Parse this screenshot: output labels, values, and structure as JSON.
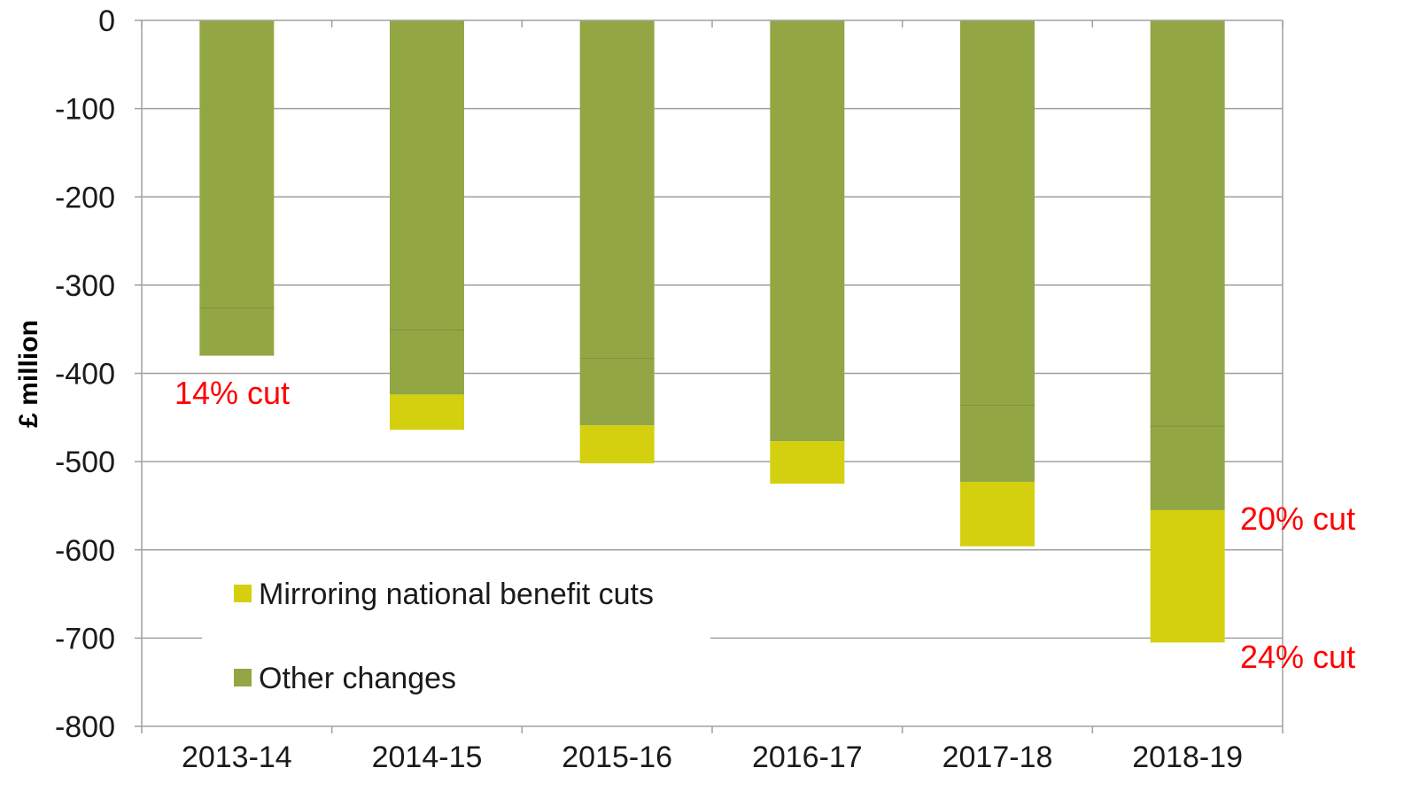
{
  "chart_data": {
    "type": "bar",
    "stacked": true,
    "categories": [
      "2013-14",
      "2014-15",
      "2015-16",
      "2016-17",
      "2017-18",
      "2018-19"
    ],
    "series": [
      {
        "name": "Other changes",
        "values": [
          -380,
          -424,
          -459,
          -477,
          -523,
          -555
        ]
      },
      {
        "name": "Mirroring national benefit cuts",
        "values": [
          0,
          -40,
          -43,
          -48,
          -73,
          -150
        ]
      }
    ],
    "inner_segment_boundaries": [
      -326,
      -351,
      -383,
      null,
      -436,
      -460
    ],
    "ylabel": "£ million",
    "xlabel": "",
    "ylim": [
      -800,
      0
    ],
    "yticks": [
      0,
      -100,
      -200,
      -300,
      -400,
      -500,
      -600,
      -700,
      -800
    ],
    "grid": true,
    "legend_position": "bottom-left",
    "annotations": [
      {
        "text": "14% cut",
        "category": "2013-14",
        "value": -380
      },
      {
        "text": "20% cut",
        "category": "2018-19",
        "value": -555
      },
      {
        "text": "24% cut",
        "category": "2018-19",
        "value": -705
      }
    ],
    "colors": {
      "other_changes": "#93a644",
      "mirroring_cuts": "#d4d00f",
      "annotation": "#ff0000",
      "grid": "#a0a0a0",
      "axis": "#a0a0a0"
    }
  }
}
